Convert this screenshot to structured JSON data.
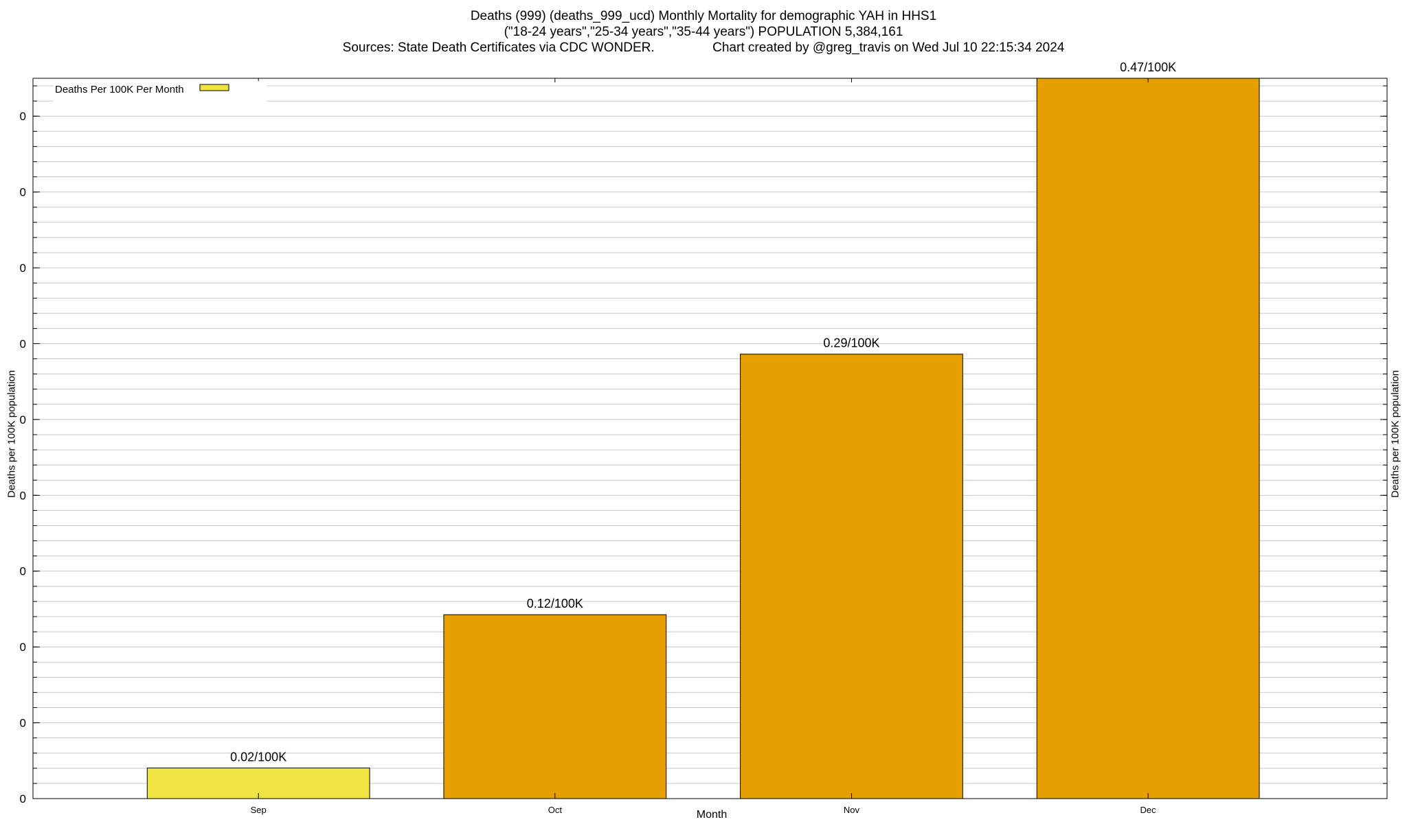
{
  "title": {
    "line1": "Deaths (999) (deaths_999_ucd) Monthly Mortality for demographic YAH in HHS1",
    "line2": "(\"18-24 years\",\"25-34 years\",\"35-44 years\") POPULATION 5,384,161",
    "line3": "Sources: State Death Certificates via CDC WONDER.                Chart created by @greg_travis on Wed Jul 10 22:15:34 2024"
  },
  "chart_data": {
    "type": "bar",
    "categories": [
      "Sep",
      "Oct",
      "Nov",
      "Dec"
    ],
    "series": [
      {
        "name": "Deaths Per 100K Per Month",
        "values": [
          0.02,
          0.12,
          0.29,
          0.47
        ],
        "labels": [
          "0.02/100K",
          "0.12/100K",
          "0.29/100K",
          "0.47/100K"
        ],
        "colors": [
          "#f0e442",
          "#e69f00",
          "#e69f00",
          "#e69f00"
        ]
      }
    ],
    "xlabel": "Month",
    "ylabel": "Deaths per 100K population",
    "ylabel_right": "Deaths per 100K population",
    "ytick_labels": [
      "0",
      "0",
      "0",
      "0",
      "0",
      "0",
      "0",
      "0",
      "0",
      "0"
    ],
    "ylim": [
      0,
      0.47
    ],
    "grid": true,
    "legend_position": "top-left",
    "colors": {
      "legend_swatch": "#f0e442",
      "grid": "#c8c8c8",
      "bar_stroke": "#000000"
    }
  }
}
